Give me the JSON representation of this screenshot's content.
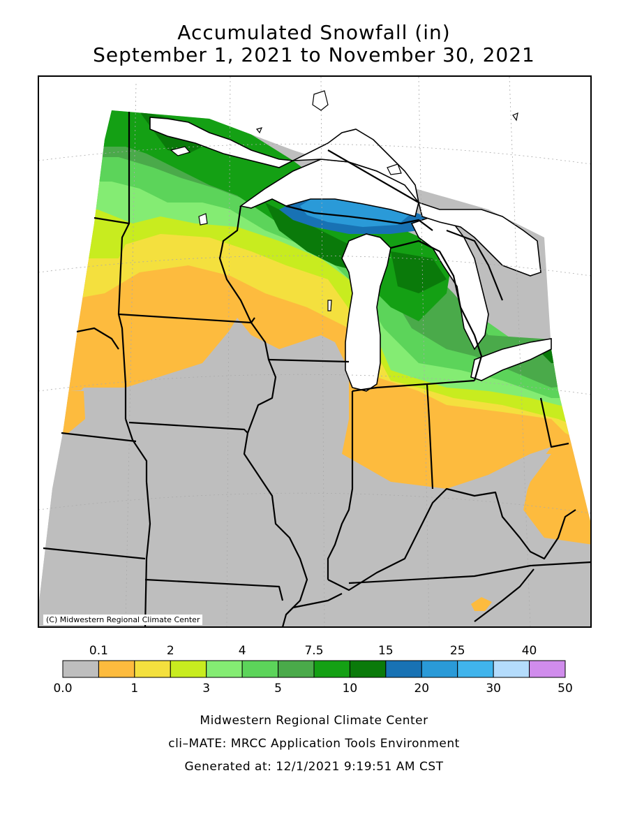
{
  "title_line1": "Accumulated Snowfall (in)",
  "title_line2": "September 1, 2021 to November 30, 2021",
  "copyright": "(C) Midwestern Regional Climate Center",
  "legend": {
    "top_labels": [
      "0.1",
      "2",
      "4",
      "7.5",
      "15",
      "25",
      "40"
    ],
    "bottom_labels": [
      "0.0",
      "1",
      "3",
      "5",
      "10",
      "20",
      "30",
      "50"
    ],
    "colors": [
      "#bebebe",
      "#fdbb3e",
      "#f4e03e",
      "#c8ec1f",
      "#84ec73",
      "#5cd45a",
      "#4aaa4a",
      "#14a014",
      "#0a7a0a",
      "#1872b4",
      "#2a9ad8",
      "#40b4ec",
      "#b4dcfc",
      "#d08cec"
    ]
  },
  "footer": {
    "line1": "Midwestern Regional Climate Center",
    "line2": "cli–MATE: MRCC Application Tools Environment",
    "line3": "Generated at: 12/1/2021 9:19:51 AM CST"
  },
  "colors": {
    "lake": "#ffffff",
    "border": "#000000",
    "grid": "#999999"
  }
}
